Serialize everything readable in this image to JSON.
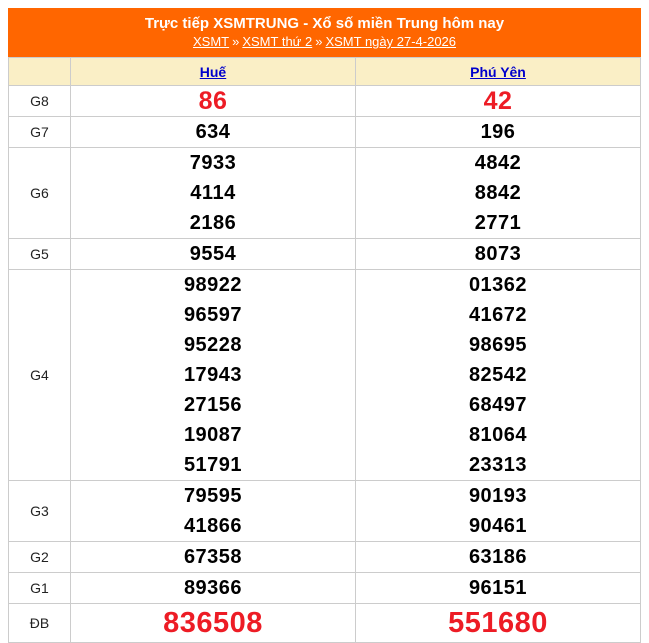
{
  "header": {
    "title": "Trực tiếp XSMTRUNG - Xổ số miền Trung hôm nay",
    "separator": "»",
    "breadcrumb": [
      {
        "label": "XSMT"
      },
      {
        "label": "XSMT thứ 2"
      },
      {
        "label": "XSMT ngày 27-4-2026"
      }
    ]
  },
  "colors": {
    "header_bg": "#FF6600",
    "thead_bg": "#FAEFC6",
    "link_blue": "#0000CC",
    "result_red": "#ED1C25",
    "border_gray": "#CCCCCC"
  },
  "table": {
    "columns": [
      "Huế",
      "Phú Yên"
    ],
    "rows": [
      {
        "prize": "G8",
        "highlight": true,
        "hue": [
          "86"
        ],
        "phuyen": [
          "42"
        ]
      },
      {
        "prize": "G7",
        "hue": [
          "634"
        ],
        "phuyen": [
          "196"
        ]
      },
      {
        "prize": "G6",
        "hue": [
          "7933",
          "4114",
          "2186"
        ],
        "phuyen": [
          "4842",
          "8842",
          "2771"
        ]
      },
      {
        "prize": "G5",
        "hue": [
          "9554"
        ],
        "phuyen": [
          "8073"
        ]
      },
      {
        "prize": "G4",
        "hue": [
          "98922",
          "96597",
          "95228",
          "17943",
          "27156",
          "19087",
          "51791"
        ],
        "phuyen": [
          "01362",
          "41672",
          "98695",
          "82542",
          "68497",
          "81064",
          "23313"
        ]
      },
      {
        "prize": "G3",
        "hue": [
          "79595",
          "41866"
        ],
        "phuyen": [
          "90193",
          "90461"
        ]
      },
      {
        "prize": "G2",
        "hue": [
          "67358"
        ],
        "phuyen": [
          "63186"
        ]
      },
      {
        "prize": "G1",
        "hue": [
          "89366"
        ],
        "phuyen": [
          "96151"
        ]
      },
      {
        "prize": "ĐB",
        "special": true,
        "hue": [
          "836508"
        ],
        "phuyen": [
          "551680"
        ]
      }
    ]
  }
}
